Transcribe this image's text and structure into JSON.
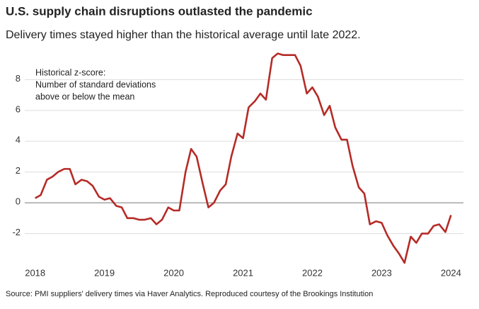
{
  "chart_data": {
    "type": "line",
    "title": "U.S. supply chain disruptions outlasted the pandemic",
    "subtitle": "Delivery times stayed higher than the historical average until late 2022.",
    "annotation": [
      "Historical z-score:",
      "Number of standard deviations",
      "above or below the mean"
    ],
    "source": "Source: PMI suppliers' delivery times via Haver Analytics. Reproduced courtesy of the Brookings Institution",
    "x": [
      2018,
      2018.08,
      2018.17,
      2018.25,
      2018.33,
      2018.42,
      2018.5,
      2018.58,
      2018.67,
      2018.75,
      2018.83,
      2018.92,
      2019,
      2019.08,
      2019.17,
      2019.25,
      2019.33,
      2019.42,
      2019.5,
      2019.58,
      2019.67,
      2019.75,
      2019.83,
      2019.92,
      2020,
      2020.08,
      2020.17,
      2020.25,
      2020.33,
      2020.42,
      2020.5,
      2020.58,
      2020.67,
      2020.75,
      2020.83,
      2020.92,
      2021,
      2021.08,
      2021.17,
      2021.25,
      2021.33,
      2021.42,
      2021.5,
      2021.58,
      2021.67,
      2021.75,
      2021.83,
      2021.92,
      2022,
      2022.08,
      2022.17,
      2022.25,
      2022.33,
      2022.42,
      2022.5,
      2022.58,
      2022.67,
      2022.75,
      2022.83,
      2022.92,
      2023,
      2023.08,
      2023.17,
      2023.25,
      2023.33,
      2023.42,
      2023.5,
      2023.58,
      2023.67,
      2023.75,
      2023.83,
      2023.92,
      2024
    ],
    "series": [
      {
        "name": "Historical z-score",
        "color": "#b52b27",
        "values": [
          0.3,
          0.5,
          1.5,
          1.7,
          2.0,
          2.2,
          2.2,
          1.2,
          1.5,
          1.4,
          1.1,
          0.4,
          0.2,
          0.3,
          -0.2,
          -0.3,
          -1.0,
          -1.0,
          -1.1,
          -1.1,
          -1.0,
          -1.4,
          -1.1,
          -0.3,
          -0.5,
          -0.5,
          2.0,
          3.5,
          3.0,
          1.2,
          -0.3,
          0.0,
          0.8,
          1.2,
          3.0,
          4.5,
          4.2,
          6.2,
          6.6,
          7.1,
          6.7,
          9.4,
          9.7,
          9.6,
          9.6,
          9.6,
          8.9,
          7.1,
          7.5,
          6.9,
          5.7,
          6.3,
          4.9,
          4.1,
          4.1,
          2.4,
          1.0,
          0.6,
          -1.4,
          -1.2,
          -1.3,
          -2.1,
          -2.8,
          -3.3,
          -3.9,
          -2.2,
          -2.6,
          -2.0,
          -2.0,
          -1.5,
          -1.4,
          -1.9,
          -0.8
        ]
      }
    ],
    "xlim": [
      2017.85,
      2024.18
    ],
    "xticks": [
      2018,
      2019,
      2020,
      2021,
      2022,
      2023,
      2024
    ],
    "ylim": [
      -4,
      10
    ],
    "yticks": [
      -2,
      0,
      2,
      4,
      6,
      8
    ],
    "grid": true
  }
}
